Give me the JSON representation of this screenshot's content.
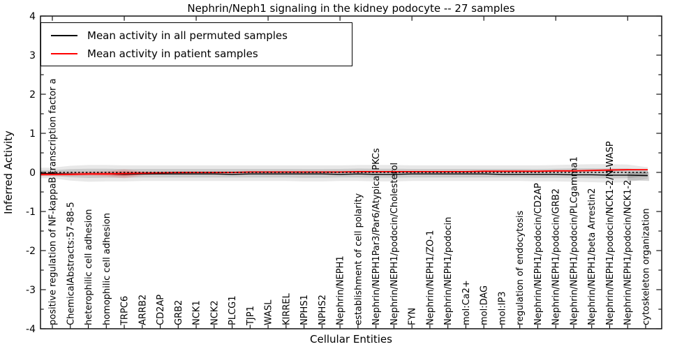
{
  "title": "Nephrin/Neph1 signaling in the kidney podocyte -- 27 samples",
  "legend": {
    "items": [
      {
        "label": "Mean activity in all permuted samples",
        "color": "#000000"
      },
      {
        "label": "Mean activity in patient samples",
        "color": "#ff0000"
      }
    ]
  },
  "axes": {
    "xlabel": "Cellular Entities",
    "ylabel": "Inferred Activity",
    "y_tick_labels": [
      "4",
      "3",
      "2",
      "1",
      "0",
      "-1",
      "-2",
      "-3",
      "-4"
    ]
  },
  "chart_data": {
    "type": "line",
    "title": "Nephrin/Neph1 signaling in the kidney podocyte -- 27 samples",
    "xlabel": "Cellular Entities",
    "ylabel": "Inferred Activity",
    "ylim": [
      -4,
      4
    ],
    "grid": false,
    "legend_position": "upper left",
    "zero_reference_line": 0,
    "categories": [
      "positive regulation of NF-kappaB transcription factor a",
      "ChemicalAbstracts:57-88-5",
      "heterophilic cell adhesion",
      "homophilic cell adhesion",
      "TRPC6",
      "ARRB2",
      "CD2AP",
      "GRB2",
      "NCK1",
      "NCK2",
      "PLCG1",
      "TJP1",
      "WASL",
      "KIRREL",
      "NPHS1",
      "NPHS2",
      "Nephrin/NEPH1",
      "establishment of cell polarity",
      "Nephrin/NEPH1Par3/Par6/Atypical PKCs",
      "Nephrin/NEPH1/podocin/Cholesterol",
      "FYN",
      "Nephrin/NEPH1/ZO-1",
      "Nephrin/NEPH1/podocin",
      "mol:Ca2+",
      "mol:DAG",
      "mol:IP3",
      "regulation of endocytosis",
      "Nephrin/NEPH1/podocin/CD2AP",
      "Nephrin/NEPH1/podocin/GRB2",
      "Nephrin/NEPH1/podocin/PLCgamma1",
      "Nephrin/NEPH1/beta Arrestin2",
      "Nephrin/NEPH1/podocin/NCK1-2/N-WASP",
      "Nephrin/NEPH1/podocin/NCK1-2",
      "cytoskeleton organization"
    ],
    "series": [
      {
        "name": "Mean activity in all permuted samples",
        "color": "#000000",
        "style": "solid",
        "values": [
          -0.03,
          -0.04,
          -0.04,
          -0.04,
          -0.05,
          -0.04,
          -0.04,
          -0.04,
          -0.04,
          -0.04,
          -0.05,
          -0.04,
          -0.04,
          -0.04,
          -0.04,
          -0.04,
          -0.05,
          -0.04,
          -0.05,
          -0.05,
          -0.04,
          -0.04,
          -0.04,
          -0.04,
          -0.04,
          -0.05,
          -0.05,
          -0.05,
          -0.05,
          -0.06,
          -0.06,
          -0.07,
          -0.07,
          -0.08
        ]
      },
      {
        "name": "Mean activity in patient samples",
        "color": "#ff0000",
        "style": "solid",
        "values": [
          -0.05,
          -0.05,
          -0.04,
          -0.04,
          -0.03,
          -0.02,
          -0.01,
          0,
          0,
          0,
          0,
          0.01,
          0.01,
          0.01,
          0.01,
          0.01,
          0.01,
          0.02,
          0.02,
          0.02,
          0.02,
          0.02,
          0.02,
          0.02,
          0.03,
          0.03,
          0.03,
          0.03,
          0.04,
          0.04,
          0.05,
          0.06,
          0.07,
          0.07
        ]
      }
    ],
    "bands": [
      {
        "name": "permuted samples range",
        "color": "gray",
        "upper": [
          0.12,
          0.17,
          0.19,
          0.19,
          0.18,
          0.18,
          0.18,
          0.18,
          0.18,
          0.18,
          0.18,
          0.18,
          0.18,
          0.18,
          0.18,
          0.18,
          0.18,
          0.19,
          0.19,
          0.19,
          0.18,
          0.18,
          0.18,
          0.18,
          0.18,
          0.18,
          0.18,
          0.18,
          0.19,
          0.2,
          0.21,
          0.21,
          0.2,
          0.14
        ],
        "lower": [
          -0.15,
          -0.21,
          -0.24,
          -0.23,
          -0.23,
          -0.22,
          -0.22,
          -0.22,
          -0.22,
          -0.22,
          -0.22,
          -0.22,
          -0.22,
          -0.22,
          -0.23,
          -0.23,
          -0.22,
          -0.22,
          -0.23,
          -0.23,
          -0.22,
          -0.22,
          -0.22,
          -0.22,
          -0.22,
          -0.22,
          -0.22,
          -0.23,
          -0.23,
          -0.24,
          -0.25,
          -0.26,
          -0.25,
          -0.17
        ]
      },
      {
        "name": "patient samples range",
        "color": "red",
        "upper": [
          0.01,
          0.01,
          0.02,
          0.03,
          0.08,
          0.03,
          0.02,
          0.02,
          0.02,
          0.02,
          0.02,
          0.02,
          0.02,
          0.02,
          0.02,
          0.02,
          0.02,
          0.03,
          0.03,
          0.03,
          0.03,
          0.03,
          0.03,
          0.03,
          0.04,
          0.04,
          0.04,
          0.05,
          0.06,
          0.06,
          0.07,
          0.09,
          0.09,
          0.08
        ],
        "lower": [
          -0.1,
          -0.09,
          -0.09,
          -0.1,
          -0.15,
          -0.08,
          -0.05,
          -0.04,
          -0.03,
          -0.03,
          -0.03,
          -0.02,
          -0.02,
          -0.02,
          -0.02,
          -0.02,
          -0.02,
          -0.01,
          -0.01,
          -0.01,
          -0.01,
          -0.01,
          -0.01,
          -0.01,
          0,
          0,
          0,
          0,
          0.01,
          0.01,
          0.02,
          0.03,
          0.04,
          0.05
        ]
      }
    ],
    "annotations": {
      "dense_overlap_patch": {
        "from_index": 32,
        "to_index": 33.2,
        "upper": 0,
        "lower": -0.2
      }
    }
  },
  "colors": {
    "frame": "#000000",
    "gray_band_outer": "rgba(0,0,0,0.09)",
    "gray_band_inner": "rgba(0,0,0,0.13)",
    "red_band_outer": "rgba(255,0,0,0.12)",
    "red_band_inner": "rgba(255,0,0,0.25)",
    "dense_patch": "rgba(0,0,0,0.16)"
  }
}
